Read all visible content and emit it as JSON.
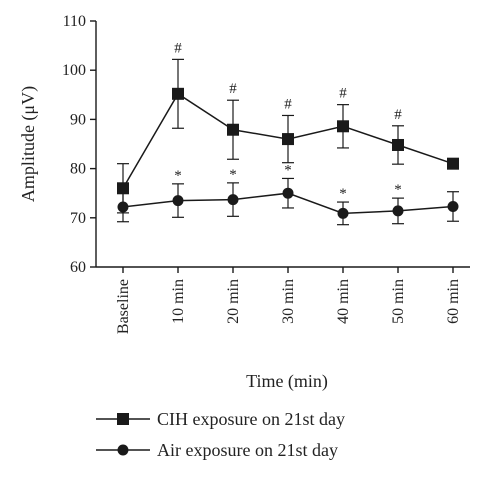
{
  "chart_data": {
    "type": "line",
    "xlabel": "Time (min)",
    "ylabel": "Amplitude (μV)",
    "ylim": [
      60,
      110
    ],
    "yticks": [
      "60",
      "70",
      "80",
      "90",
      "100",
      "110"
    ],
    "categories": [
      "Baseline",
      "10 min",
      "20 min",
      "30 min",
      "40 min",
      "50 min",
      "60 min"
    ],
    "grid": false,
    "legend_position": "bottom",
    "series": [
      {
        "name": "CIH exposure on 21st day",
        "marker": "square",
        "values": [
          76.0,
          95.2,
          87.9,
          86.0,
          88.6,
          84.8,
          81.0
        ],
        "error": [
          5.0,
          7.0,
          6.0,
          4.8,
          4.4,
          3.9,
          1.0
        ],
        "annotations": [
          "",
          "#",
          "#",
          "#",
          "#",
          "#",
          ""
        ]
      },
      {
        "name": "Air exposure on 21st day",
        "marker": "circle",
        "values": [
          72.2,
          73.5,
          73.7,
          75.0,
          70.9,
          71.4,
          72.3
        ],
        "error": [
          3.0,
          3.4,
          3.4,
          3.0,
          2.3,
          2.6,
          3.0
        ],
        "annotations": [
          "",
          "*",
          "*",
          "*",
          "*",
          "*",
          ""
        ]
      }
    ],
    "colors": {
      "line": "#1a1a1a",
      "marker": "#1a1a1a"
    }
  }
}
